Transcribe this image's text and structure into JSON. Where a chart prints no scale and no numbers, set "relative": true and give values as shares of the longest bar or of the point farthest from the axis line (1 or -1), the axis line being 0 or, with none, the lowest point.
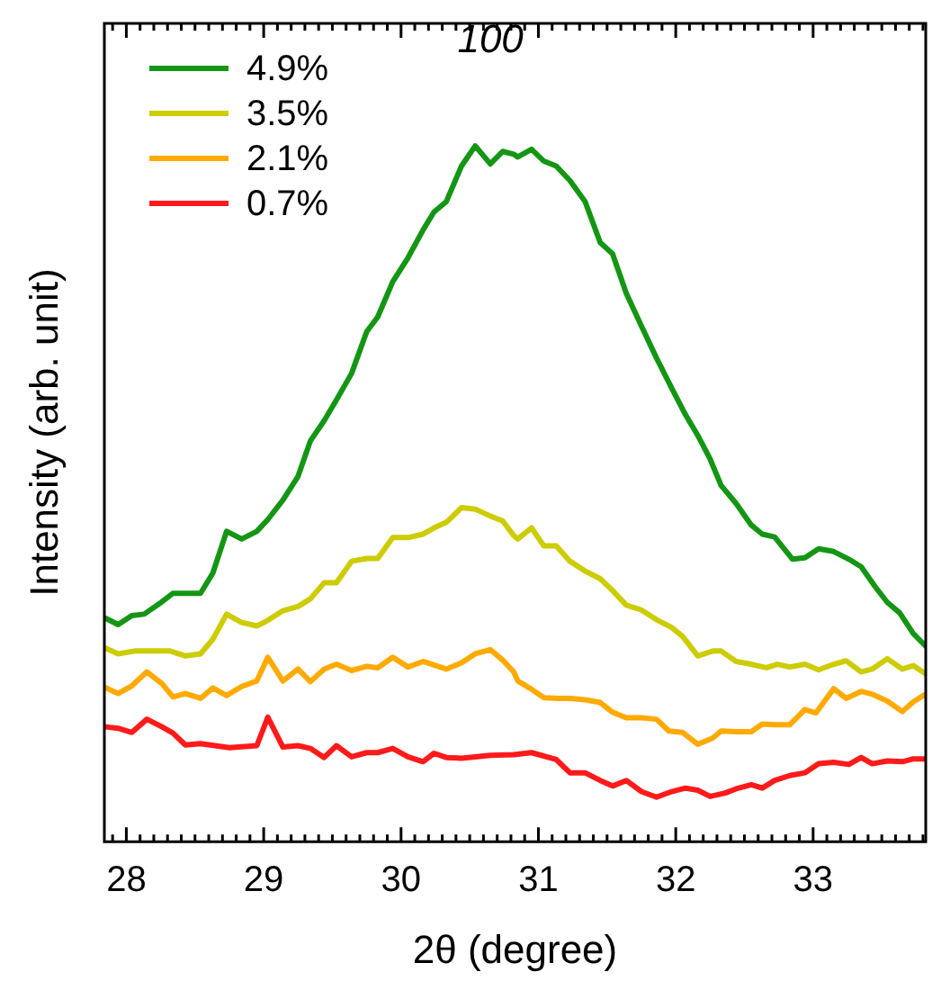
{
  "chart_data": {
    "type": "line",
    "relative": true,
    "xlabel": "2θ (degree)",
    "ylabel": "Intensity (arb. unit)",
    "xlim": [
      27.84,
      33.82
    ],
    "xticks": [
      {
        "value": 27.9,
        "label": null
      },
      28,
      {
        "value": 28.1,
        "label": null
      },
      {
        "value": 28.2,
        "label": null
      },
      {
        "value": 28.3,
        "label": null
      },
      {
        "value": 28.4,
        "label": null
      },
      {
        "value": 28.5,
        "label": null
      },
      {
        "value": 28.6,
        "label": null
      },
      {
        "value": 28.7,
        "label": null
      },
      {
        "value": 28.8,
        "label": null
      },
      {
        "value": 28.9,
        "label": null
      },
      29,
      {
        "value": 29.1,
        "label": null
      },
      {
        "value": 29.2,
        "label": null
      },
      {
        "value": 29.3,
        "label": null
      },
      {
        "value": 29.4,
        "label": null
      },
      {
        "value": 29.5,
        "label": null
      },
      {
        "value": 29.6,
        "label": null
      },
      {
        "value": 29.7,
        "label": null
      },
      {
        "value": 29.8,
        "label": null
      },
      {
        "value": 29.9,
        "label": null
      },
      30,
      {
        "value": 30.1,
        "label": null
      },
      {
        "value": 30.2,
        "label": null
      },
      {
        "value": 30.3,
        "label": null
      },
      {
        "value": 30.4,
        "label": null
      },
      {
        "value": 30.5,
        "label": null
      },
      {
        "value": 30.6,
        "label": null
      },
      {
        "value": 30.7,
        "label": null
      },
      {
        "value": 30.8,
        "label": null
      },
      {
        "value": 30.9,
        "label": null
      },
      31,
      {
        "value": 31.1,
        "label": null
      },
      {
        "value": 31.2,
        "label": null
      },
      {
        "value": 31.3,
        "label": null
      },
      {
        "value": 31.4,
        "label": null
      },
      {
        "value": 31.5,
        "label": null
      },
      {
        "value": 31.6,
        "label": null
      },
      {
        "value": 31.7,
        "label": null
      },
      {
        "value": 31.8,
        "label": null
      },
      {
        "value": 31.9,
        "label": null
      },
      32,
      {
        "value": 32.1,
        "label": null
      },
      {
        "value": 32.2,
        "label": null
      },
      {
        "value": 32.3,
        "label": null
      },
      {
        "value": 32.4,
        "label": null
      },
      {
        "value": 32.5,
        "label": null
      },
      {
        "value": 32.6,
        "label": null
      },
      {
        "value": 32.7,
        "label": null
      },
      {
        "value": 32.8,
        "label": null
      },
      {
        "value": 32.9,
        "label": null
      },
      33,
      {
        "value": 33.1,
        "label": null
      },
      {
        "value": 33.2,
        "label": null
      },
      {
        "value": 33.3,
        "label": null
      },
      {
        "value": 33.4,
        "label": null
      },
      {
        "value": 33.5,
        "label": null
      },
      {
        "value": 33.6,
        "label": null
      },
      {
        "value": 33.7,
        "label": null
      },
      {
        "value": 33.8,
        "label": null
      }
    ],
    "legend": "top left",
    "marker": "none",
    "line_style": "solid",
    "grid": false,
    "annotations": [
      "100"
    ],
    "series": [
      {
        "name": "4.9%",
        "color": "#149614",
        "x": [
          27.85,
          27.94,
          28.04,
          28.13,
          28.24,
          28.34,
          28.54,
          28.63,
          28.73,
          28.84,
          28.95,
          29.03,
          29.14,
          29.25,
          29.34,
          29.44,
          29.53,
          29.64,
          29.75,
          29.83,
          29.94,
          30.05,
          30.16,
          30.24,
          30.33,
          30.44,
          30.54,
          30.65,
          30.74,
          30.82,
          30.85,
          30.95,
          31.04,
          31.13,
          31.23,
          31.34,
          31.45,
          31.54,
          31.64,
          31.75,
          31.86,
          31.97,
          32.07,
          32.16,
          32.25,
          32.33,
          32.44,
          32.55,
          32.63,
          32.72,
          32.85,
          32.94,
          33.04,
          33.15,
          33.26,
          33.35,
          33.45,
          33.54,
          33.63,
          33.73,
          33.82
        ],
        "values": [
          0.321,
          0.312,
          0.325,
          0.327,
          0.342,
          0.357,
          0.357,
          0.386,
          0.446,
          0.435,
          0.446,
          0.463,
          0.491,
          0.525,
          0.576,
          0.605,
          0.635,
          0.673,
          0.733,
          0.754,
          0.805,
          0.839,
          0.879,
          0.905,
          0.92,
          0.971,
          1.0,
          0.974,
          0.992,
          0.988,
          0.984,
          0.995,
          0.978,
          0.971,
          0.95,
          0.92,
          0.861,
          0.845,
          0.788,
          0.741,
          0.695,
          0.652,
          0.614,
          0.584,
          0.55,
          0.512,
          0.486,
          0.455,
          0.442,
          0.438,
          0.406,
          0.408,
          0.421,
          0.417,
          0.406,
          0.395,
          0.367,
          0.344,
          0.329,
          0.299,
          0.281
        ]
      },
      {
        "name": "3.5%",
        "color": "#cccc00",
        "x": [
          27.85,
          27.94,
          28.06,
          28.32,
          28.43,
          28.54,
          28.63,
          28.73,
          28.84,
          28.95,
          29.03,
          29.14,
          29.25,
          29.34,
          29.44,
          29.53,
          29.64,
          29.75,
          29.83,
          29.94,
          30.05,
          30.16,
          30.24,
          30.33,
          30.44,
          30.54,
          30.65,
          30.74,
          30.82,
          30.85,
          30.95,
          31.04,
          31.13,
          31.23,
          31.34,
          31.45,
          31.54,
          31.64,
          31.75,
          31.86,
          31.97,
          32.05,
          32.16,
          32.27,
          32.33,
          32.44,
          32.55,
          32.66,
          32.74,
          32.83,
          32.94,
          33.04,
          33.15,
          33.24,
          33.35,
          33.43,
          33.54,
          33.65,
          33.73,
          33.82
        ],
        "values": [
          0.278,
          0.27,
          0.274,
          0.274,
          0.267,
          0.27,
          0.291,
          0.327,
          0.315,
          0.31,
          0.318,
          0.332,
          0.338,
          0.349,
          0.372,
          0.372,
          0.403,
          0.407,
          0.407,
          0.437,
          0.437,
          0.442,
          0.451,
          0.459,
          0.48,
          0.478,
          0.468,
          0.461,
          0.44,
          0.435,
          0.451,
          0.425,
          0.425,
          0.403,
          0.389,
          0.378,
          0.361,
          0.34,
          0.333,
          0.319,
          0.308,
          0.295,
          0.267,
          0.274,
          0.274,
          0.259,
          0.255,
          0.25,
          0.255,
          0.251,
          0.255,
          0.247,
          0.255,
          0.26,
          0.244,
          0.248,
          0.263,
          0.248,
          0.253,
          0.241
        ]
      },
      {
        "name": "2.1%",
        "color": "#ffaa00",
        "x": [
          27.85,
          27.94,
          28.04,
          28.15,
          28.26,
          28.34,
          28.43,
          28.54,
          28.63,
          28.73,
          28.84,
          28.95,
          29.03,
          29.14,
          29.25,
          29.34,
          29.44,
          29.53,
          29.64,
          29.75,
          29.83,
          29.94,
          30.05,
          30.16,
          30.24,
          30.33,
          30.44,
          30.54,
          30.65,
          30.74,
          30.82,
          30.85,
          30.95,
          31.04,
          31.15,
          31.23,
          31.34,
          31.45,
          31.54,
          31.64,
          31.75,
          31.86,
          31.95,
          32.05,
          32.16,
          32.27,
          32.33,
          32.44,
          32.55,
          32.63,
          32.72,
          32.83,
          32.94,
          33.02,
          33.15,
          33.24,
          33.35,
          33.43,
          33.54,
          33.65,
          33.73,
          33.82
        ],
        "values": [
          0.221,
          0.213,
          0.224,
          0.244,
          0.227,
          0.208,
          0.213,
          0.206,
          0.221,
          0.21,
          0.223,
          0.231,
          0.265,
          0.231,
          0.248,
          0.23,
          0.248,
          0.255,
          0.246,
          0.252,
          0.25,
          0.265,
          0.251,
          0.259,
          0.254,
          0.248,
          0.257,
          0.27,
          0.276,
          0.261,
          0.244,
          0.231,
          0.219,
          0.207,
          0.206,
          0.206,
          0.204,
          0.2,
          0.186,
          0.178,
          0.178,
          0.176,
          0.159,
          0.157,
          0.14,
          0.149,
          0.159,
          0.158,
          0.158,
          0.169,
          0.168,
          0.168,
          0.19,
          0.185,
          0.22,
          0.206,
          0.216,
          0.212,
          0.202,
          0.187,
          0.201,
          0.212
        ]
      },
      {
        "name": "0.7%",
        "color": "#ff1a1a",
        "x": [
          27.85,
          27.94,
          28.04,
          28.15,
          28.26,
          28.34,
          28.43,
          28.54,
          28.75,
          28.95,
          29.03,
          29.14,
          29.25,
          29.34,
          29.44,
          29.53,
          29.64,
          29.75,
          29.83,
          29.94,
          30.05,
          30.16,
          30.24,
          30.33,
          30.44,
          30.65,
          30.82,
          30.95,
          31.13,
          31.23,
          31.34,
          31.45,
          31.54,
          31.64,
          31.75,
          31.86,
          31.97,
          32.07,
          32.16,
          32.25,
          32.36,
          32.44,
          32.55,
          32.63,
          32.72,
          32.83,
          32.94,
          33.04,
          33.15,
          33.26,
          33.35,
          33.43,
          33.54,
          33.65,
          33.73,
          33.82
        ],
        "values": [
          0.165,
          0.163,
          0.157,
          0.176,
          0.165,
          0.156,
          0.139,
          0.141,
          0.135,
          0.138,
          0.179,
          0.136,
          0.138,
          0.134,
          0.121,
          0.138,
          0.122,
          0.128,
          0.128,
          0.134,
          0.122,
          0.115,
          0.127,
          0.121,
          0.12,
          0.124,
          0.125,
          0.128,
          0.118,
          0.099,
          0.099,
          0.088,
          0.08,
          0.088,
          0.072,
          0.064,
          0.072,
          0.077,
          0.074,
          0.065,
          0.07,
          0.076,
          0.082,
          0.077,
          0.088,
          0.095,
          0.099,
          0.112,
          0.114,
          0.111,
          0.121,
          0.112,
          0.116,
          0.115,
          0.119,
          0.119
        ]
      }
    ]
  }
}
